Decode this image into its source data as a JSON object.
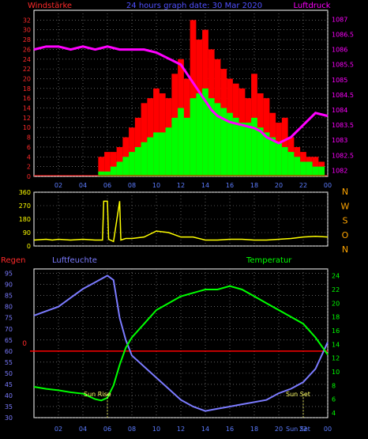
{
  "header": {
    "left_label": "Windstärke",
    "center_label": "24 hours graph date: 30 Mar 2020",
    "right_label": "Luftdruck"
  },
  "colors": {
    "wind_max": "#ff0000",
    "wind_avg": "#00ff00",
    "pressure": "#ff00ff",
    "direction": "#ffff00",
    "humidity": "#7b7bff",
    "temperature": "#00ff00",
    "rain": "#ff0000",
    "grid": "#9a9a9a",
    "frame": "#ffffff",
    "left_axis_wind": "#ff2a2a",
    "right_axis_pressure": "#ff00ff",
    "center_title": "#5050ff",
    "axis_tick_text": "#ffffff",
    "x_tick_text": "#5c7cff",
    "direction_axis_text": "#ffff00",
    "compass_text": "#ffa500"
  },
  "x_axis": {
    "ticks": [
      "02",
      "04",
      "06",
      "08",
      "10",
      "12",
      "14",
      "16",
      "18",
      "20",
      "22",
      "00"
    ],
    "hour_range": [
      0,
      24
    ]
  },
  "chart_data": [
    {
      "type": "bar",
      "subtype": "wind_with_pressure_line",
      "title": "24 hours graph date: 30 Mar 2020",
      "ylabel": "Windstärke",
      "ylabel_right": "Luftdruck",
      "ylim": [
        0,
        34
      ],
      "ylim_right": [
        1081.8,
        1087.3
      ],
      "yticks": [
        0,
        2,
        4,
        6,
        8,
        10,
        12,
        14,
        16,
        18,
        20,
        22,
        24,
        26,
        28,
        30,
        32
      ],
      "yticks_right": [
        "1082",
        "1082.5",
        "1083",
        "1083.5",
        "1084",
        "1084.5",
        "1085",
        "1085.5",
        "1086",
        "1086.5",
        "1087"
      ],
      "grid": true,
      "series": [
        {
          "name": "Windstärke",
          "kind": "max",
          "x_hours": [
            5.5,
            6,
            6.5,
            7,
            7.5,
            8,
            8.5,
            9,
            9.5,
            10,
            10.5,
            11,
            11.5,
            12,
            12.5,
            13,
            13.5,
            14,
            14.5,
            15,
            15.5,
            16,
            16.5,
            17,
            17.5,
            18,
            18.5,
            19,
            19.5,
            20,
            20.5,
            21,
            21.5,
            22,
            22.5,
            23,
            23.5
          ],
          "values": [
            4,
            5,
            5,
            6,
            8,
            10,
            12,
            15,
            16,
            18,
            17,
            16,
            21,
            24,
            20,
            32,
            28,
            30,
            26,
            24,
            22,
            20,
            19,
            18,
            16,
            21,
            17,
            16,
            13,
            11,
            12,
            8,
            6,
            5,
            4,
            4,
            3
          ]
        },
        {
          "name": "Windstärke",
          "kind": "avg",
          "x_hours": [
            5.5,
            6,
            6.5,
            7,
            7.5,
            8,
            8.5,
            9,
            9.5,
            10,
            10.5,
            11,
            11.5,
            12,
            12.5,
            13,
            13.5,
            14,
            14.5,
            15,
            15.5,
            16,
            16.5,
            17,
            17.5,
            18,
            18.5,
            19,
            19.5,
            20,
            20.5,
            21,
            21.5,
            22,
            22.5,
            23,
            23.5
          ],
          "values": [
            1,
            1,
            2,
            3,
            4,
            5,
            6,
            7,
            8,
            9,
            9,
            10,
            12,
            14,
            12,
            16,
            17,
            18,
            16,
            15,
            14,
            13,
            12,
            11,
            11,
            12,
            10,
            9,
            8,
            7,
            6,
            5,
            4,
            3,
            3,
            2,
            2
          ]
        },
        {
          "name": "Luftdruck",
          "kind": "line",
          "x_hours": [
            0,
            1,
            2,
            3,
            4,
            5,
            6,
            7,
            8,
            9,
            10,
            11,
            12,
            12.5,
            13,
            13.5,
            14,
            14.5,
            15,
            16,
            17,
            18,
            18.5,
            19,
            19.5,
            20,
            20.5,
            21,
            22,
            23,
            24
          ],
          "values": [
            1086.0,
            1086.1,
            1086.1,
            1086.0,
            1086.1,
            1086.0,
            1086.1,
            1086.0,
            1086.0,
            1086.0,
            1085.9,
            1085.7,
            1085.5,
            1085.2,
            1084.9,
            1084.6,
            1084.3,
            1084.0,
            1083.8,
            1083.6,
            1083.5,
            1083.4,
            1083.3,
            1083.1,
            1083.0,
            1082.9,
            1083.0,
            1083.1,
            1083.5,
            1083.9,
            1083.8
          ]
        }
      ]
    },
    {
      "type": "line",
      "subtype": "wind_direction",
      "ylim": [
        0,
        360
      ],
      "yticks": [
        0,
        90,
        180,
        270,
        360
      ],
      "compass_labels": [
        "N",
        "W",
        "S",
        "O",
        "N"
      ],
      "grid": true,
      "series": [
        {
          "name": "",
          "x_hours": [
            0,
            1,
            1.5,
            2,
            3,
            4,
            5,
            5.6,
            5.7,
            6.0,
            6.1,
            6.5,
            7.0,
            7.1,
            7.5,
            8,
            9,
            10,
            11,
            12,
            13,
            14,
            15,
            16,
            17,
            18,
            19,
            20,
            21,
            22,
            23,
            24
          ],
          "values": [
            40,
            45,
            40,
            45,
            40,
            45,
            40,
            40,
            300,
            300,
            45,
            30,
            300,
            40,
            50,
            50,
            60,
            100,
            90,
            60,
            60,
            40,
            40,
            45,
            45,
            40,
            40,
            45,
            50,
            60,
            65,
            60
          ]
        }
      ]
    },
    {
      "type": "line",
      "subtype": "humidity_temperature_rain",
      "left_title": "Regen",
      "middle_title": "Luftfeuchte",
      "right_title": "Temperatur",
      "ylim_humidity": [
        30,
        97
      ],
      "yticks_humidity": [
        30,
        35,
        40,
        45,
        50,
        55,
        60,
        65,
        70,
        75,
        80,
        85,
        90,
        95
      ],
      "ylim_temperature": [
        3.3,
        25
      ],
      "yticks_temperature": [
        4,
        6,
        8,
        10,
        12,
        14,
        16,
        18,
        20,
        22,
        24
      ],
      "rain_axis_label": "0",
      "annotations": [
        "Sun Rise",
        "Sun Set"
      ],
      "x_tick_extra": "Sun Set",
      "grid": true,
      "series": [
        {
          "name": "Luftfeuchte",
          "x_hours": [
            0,
            1,
            2,
            3,
            4,
            5,
            6,
            6.5,
            7,
            7.5,
            8,
            9,
            10,
            11,
            12,
            13,
            14,
            15,
            16,
            17,
            18,
            19,
            20,
            21,
            22,
            23,
            24
          ],
          "values": [
            76,
            78,
            80,
            84,
            88,
            91,
            94,
            92,
            75,
            65,
            58,
            53,
            48,
            43,
            38,
            35,
            33,
            34,
            35,
            36,
            37,
            38,
            41,
            43,
            46,
            52,
            64
          ]
        },
        {
          "name": "Temperatur",
          "x_hours": [
            0,
            1,
            2,
            3,
            4,
            5,
            5.5,
            6,
            6.5,
            7,
            7.5,
            8,
            9,
            10,
            11,
            12,
            13,
            14,
            15,
            16,
            17,
            18,
            19,
            20,
            21,
            22,
            23,
            24
          ],
          "values": [
            7.8,
            7.5,
            7.3,
            7.0,
            6.8,
            6.0,
            5.8,
            6.2,
            8,
            11,
            13.5,
            15,
            17,
            19,
            20,
            21,
            21.5,
            22,
            22,
            22.5,
            22,
            21,
            20,
            19,
            18,
            17,
            15,
            12.5
          ]
        },
        {
          "name": "Regen",
          "x_hours": [
            0,
            24
          ],
          "values": [
            0,
            0
          ]
        }
      ]
    }
  ]
}
